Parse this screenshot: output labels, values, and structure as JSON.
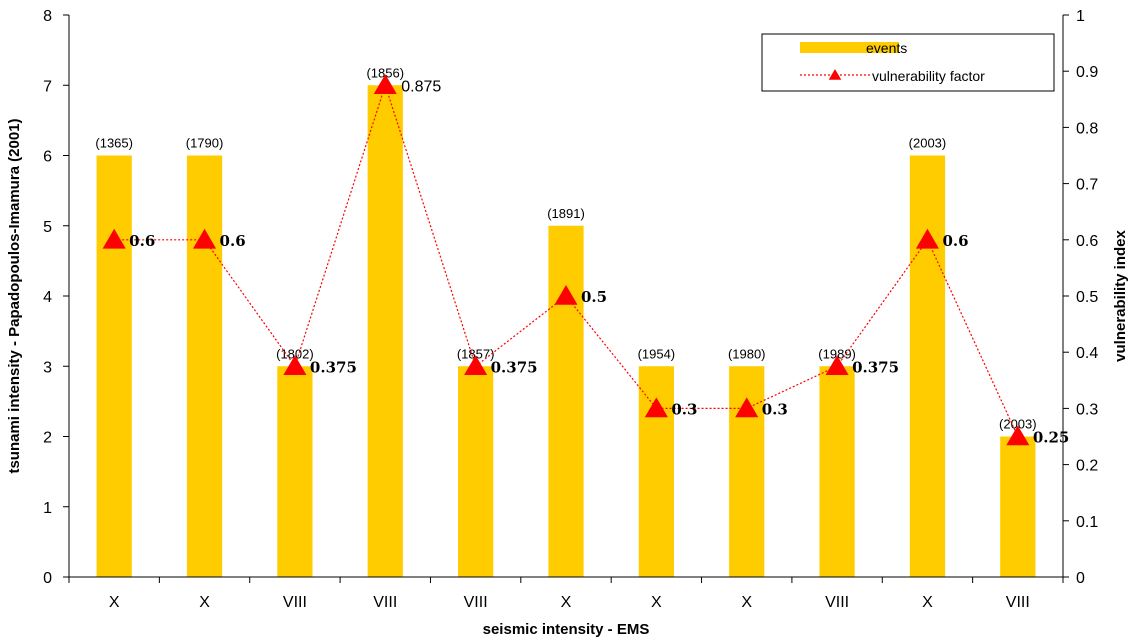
{
  "chart_data": {
    "type": "bar",
    "categories": [
      "X",
      "X",
      "VIII",
      "VIII",
      "VIII",
      "X",
      "X",
      "X",
      "VIII",
      "X",
      "VIII"
    ],
    "years": [
      "(1365)",
      "(1790)",
      "(1802)",
      "(1856)",
      "(1857)",
      "(1891)",
      "(1954)",
      "(1980)",
      "(1989)",
      "(2003)",
      "(2003)"
    ],
    "series": [
      {
        "name": "events",
        "type": "bar",
        "axis": "left",
        "color": "#FFCC00",
        "values": [
          6,
          6,
          3,
          7,
          3,
          5,
          3,
          3,
          3,
          6,
          2
        ]
      },
      {
        "name": "vulnerability factor",
        "type": "line",
        "axis": "right",
        "color": "#FF0000",
        "marker": "triangle",
        "line_style": "dotted",
        "values": [
          0.6,
          0.6,
          0.375,
          0.875,
          0.375,
          0.5,
          0.3,
          0.3,
          0.375,
          0.6,
          0.25
        ],
        "labels": [
          "0.6",
          "0.6",
          "0.375",
          "0.875",
          "0.375",
          "0.5",
          "0.3",
          "0.3",
          "0.375",
          "0.6",
          "0.25"
        ]
      }
    ],
    "xlabel": "seismic intensity - EMS",
    "ylabel": "tsunami intensity - Papadopoulos-Imamura (2001)",
    "y2label": "vulnerability index",
    "ylim": [
      0,
      8
    ],
    "y2lim": [
      0,
      1
    ],
    "yticks": [
      "0",
      "1",
      "2",
      "3",
      "4",
      "5",
      "6",
      "7",
      "8"
    ],
    "y2ticks": [
      "0",
      "0.1",
      "0.2",
      "0.3",
      "0.4",
      "0.5",
      "0.6",
      "0.7",
      "0.8",
      "0.9",
      "1"
    ],
    "grid": false,
    "legend_position": "top-right"
  }
}
